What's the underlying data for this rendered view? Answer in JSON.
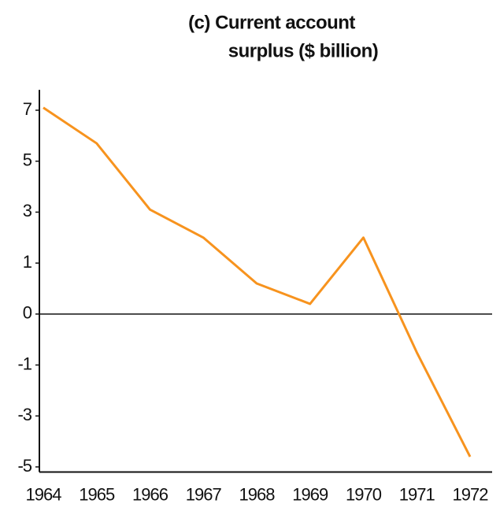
{
  "chart_data": {
    "type": "line",
    "title": [
      "(c) Current account",
      "surplus ($ billion)"
    ],
    "categories": [
      "1964",
      "1965",
      "1966",
      "1967",
      "1968",
      "1969",
      "1970",
      "1971",
      "1972"
    ],
    "series": [
      {
        "name": "Current account surplus",
        "color": "#f7931e",
        "values": [
          7.1,
          5.7,
          3.1,
          2.0,
          0.6,
          0.2,
          2.0,
          -0.75,
          -4.6
        ]
      }
    ],
    "ylim": [
      -5.2,
      7.8
    ],
    "yticks": [
      7,
      5,
      3,
      1,
      0,
      -1,
      -3,
      -5
    ]
  }
}
